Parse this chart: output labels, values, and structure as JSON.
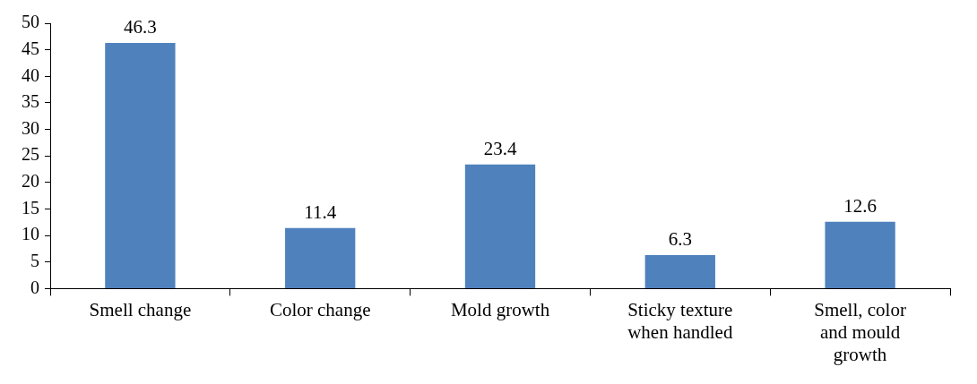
{
  "chart_data": {
    "type": "bar",
    "categories": [
      "Smell change",
      "Color change",
      "Mold growth",
      "Sticky texture when handled",
      "Smell, color and mould growth"
    ],
    "values": [
      46.3,
      11.4,
      23.4,
      6.3,
      12.6
    ],
    "color": "#4f81bd",
    "ylim": [
      0,
      50
    ],
    "yticks": [
      0,
      5,
      10,
      15,
      20,
      25,
      30,
      35,
      40,
      45,
      50
    ],
    "grid": false,
    "legend": false,
    "data_labels": true
  }
}
